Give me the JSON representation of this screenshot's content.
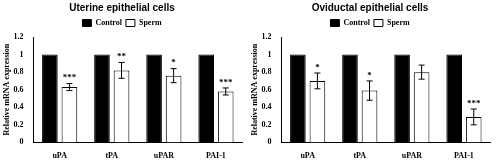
{
  "chart_data": [
    {
      "type": "bar",
      "title": "Uterine epithelial cells",
      "y_label": "Relative mRNA expression",
      "categories": [
        "uPA",
        "tPA",
        "uPAR",
        "PAI-1"
      ],
      "series": [
        {
          "name": "Control",
          "color": "#000000",
          "values": [
            1,
            1,
            1,
            1
          ]
        },
        {
          "name": "Sperm",
          "color": "#ffffff",
          "values": [
            0.63,
            0.82,
            0.76,
            0.58
          ],
          "errors": [
            0.04,
            0.09,
            0.08,
            0.04
          ],
          "annotations": [
            "***",
            "**",
            "*",
            "***"
          ]
        }
      ],
      "ylim": [
        0,
        1.2
      ],
      "yticks": [
        0,
        0.2,
        0.4,
        0.6,
        0.8,
        1,
        1.2
      ],
      "grid": false,
      "legend": "top"
    },
    {
      "type": "bar",
      "title": "Oviductal epithelial cells",
      "y_label": "Relative mRNA expression",
      "categories": [
        "uPA",
        "tPA",
        "uPAR",
        "PAI-1"
      ],
      "series": [
        {
          "name": "Control",
          "color": "#000000",
          "values": [
            1,
            1,
            1,
            1
          ]
        },
        {
          "name": "Sperm",
          "color": "#ffffff",
          "values": [
            0.7,
            0.59,
            0.8,
            0.29
          ],
          "errors": [
            0.09,
            0.11,
            0.08,
            0.09
          ],
          "annotations": [
            "*",
            "*",
            null,
            "***"
          ]
        }
      ],
      "ylim": [
        0,
        1.2
      ],
      "yticks": [
        0,
        0.2,
        0.4,
        0.6,
        0.8,
        1,
        1.2
      ],
      "grid": false,
      "legend": "top"
    }
  ]
}
